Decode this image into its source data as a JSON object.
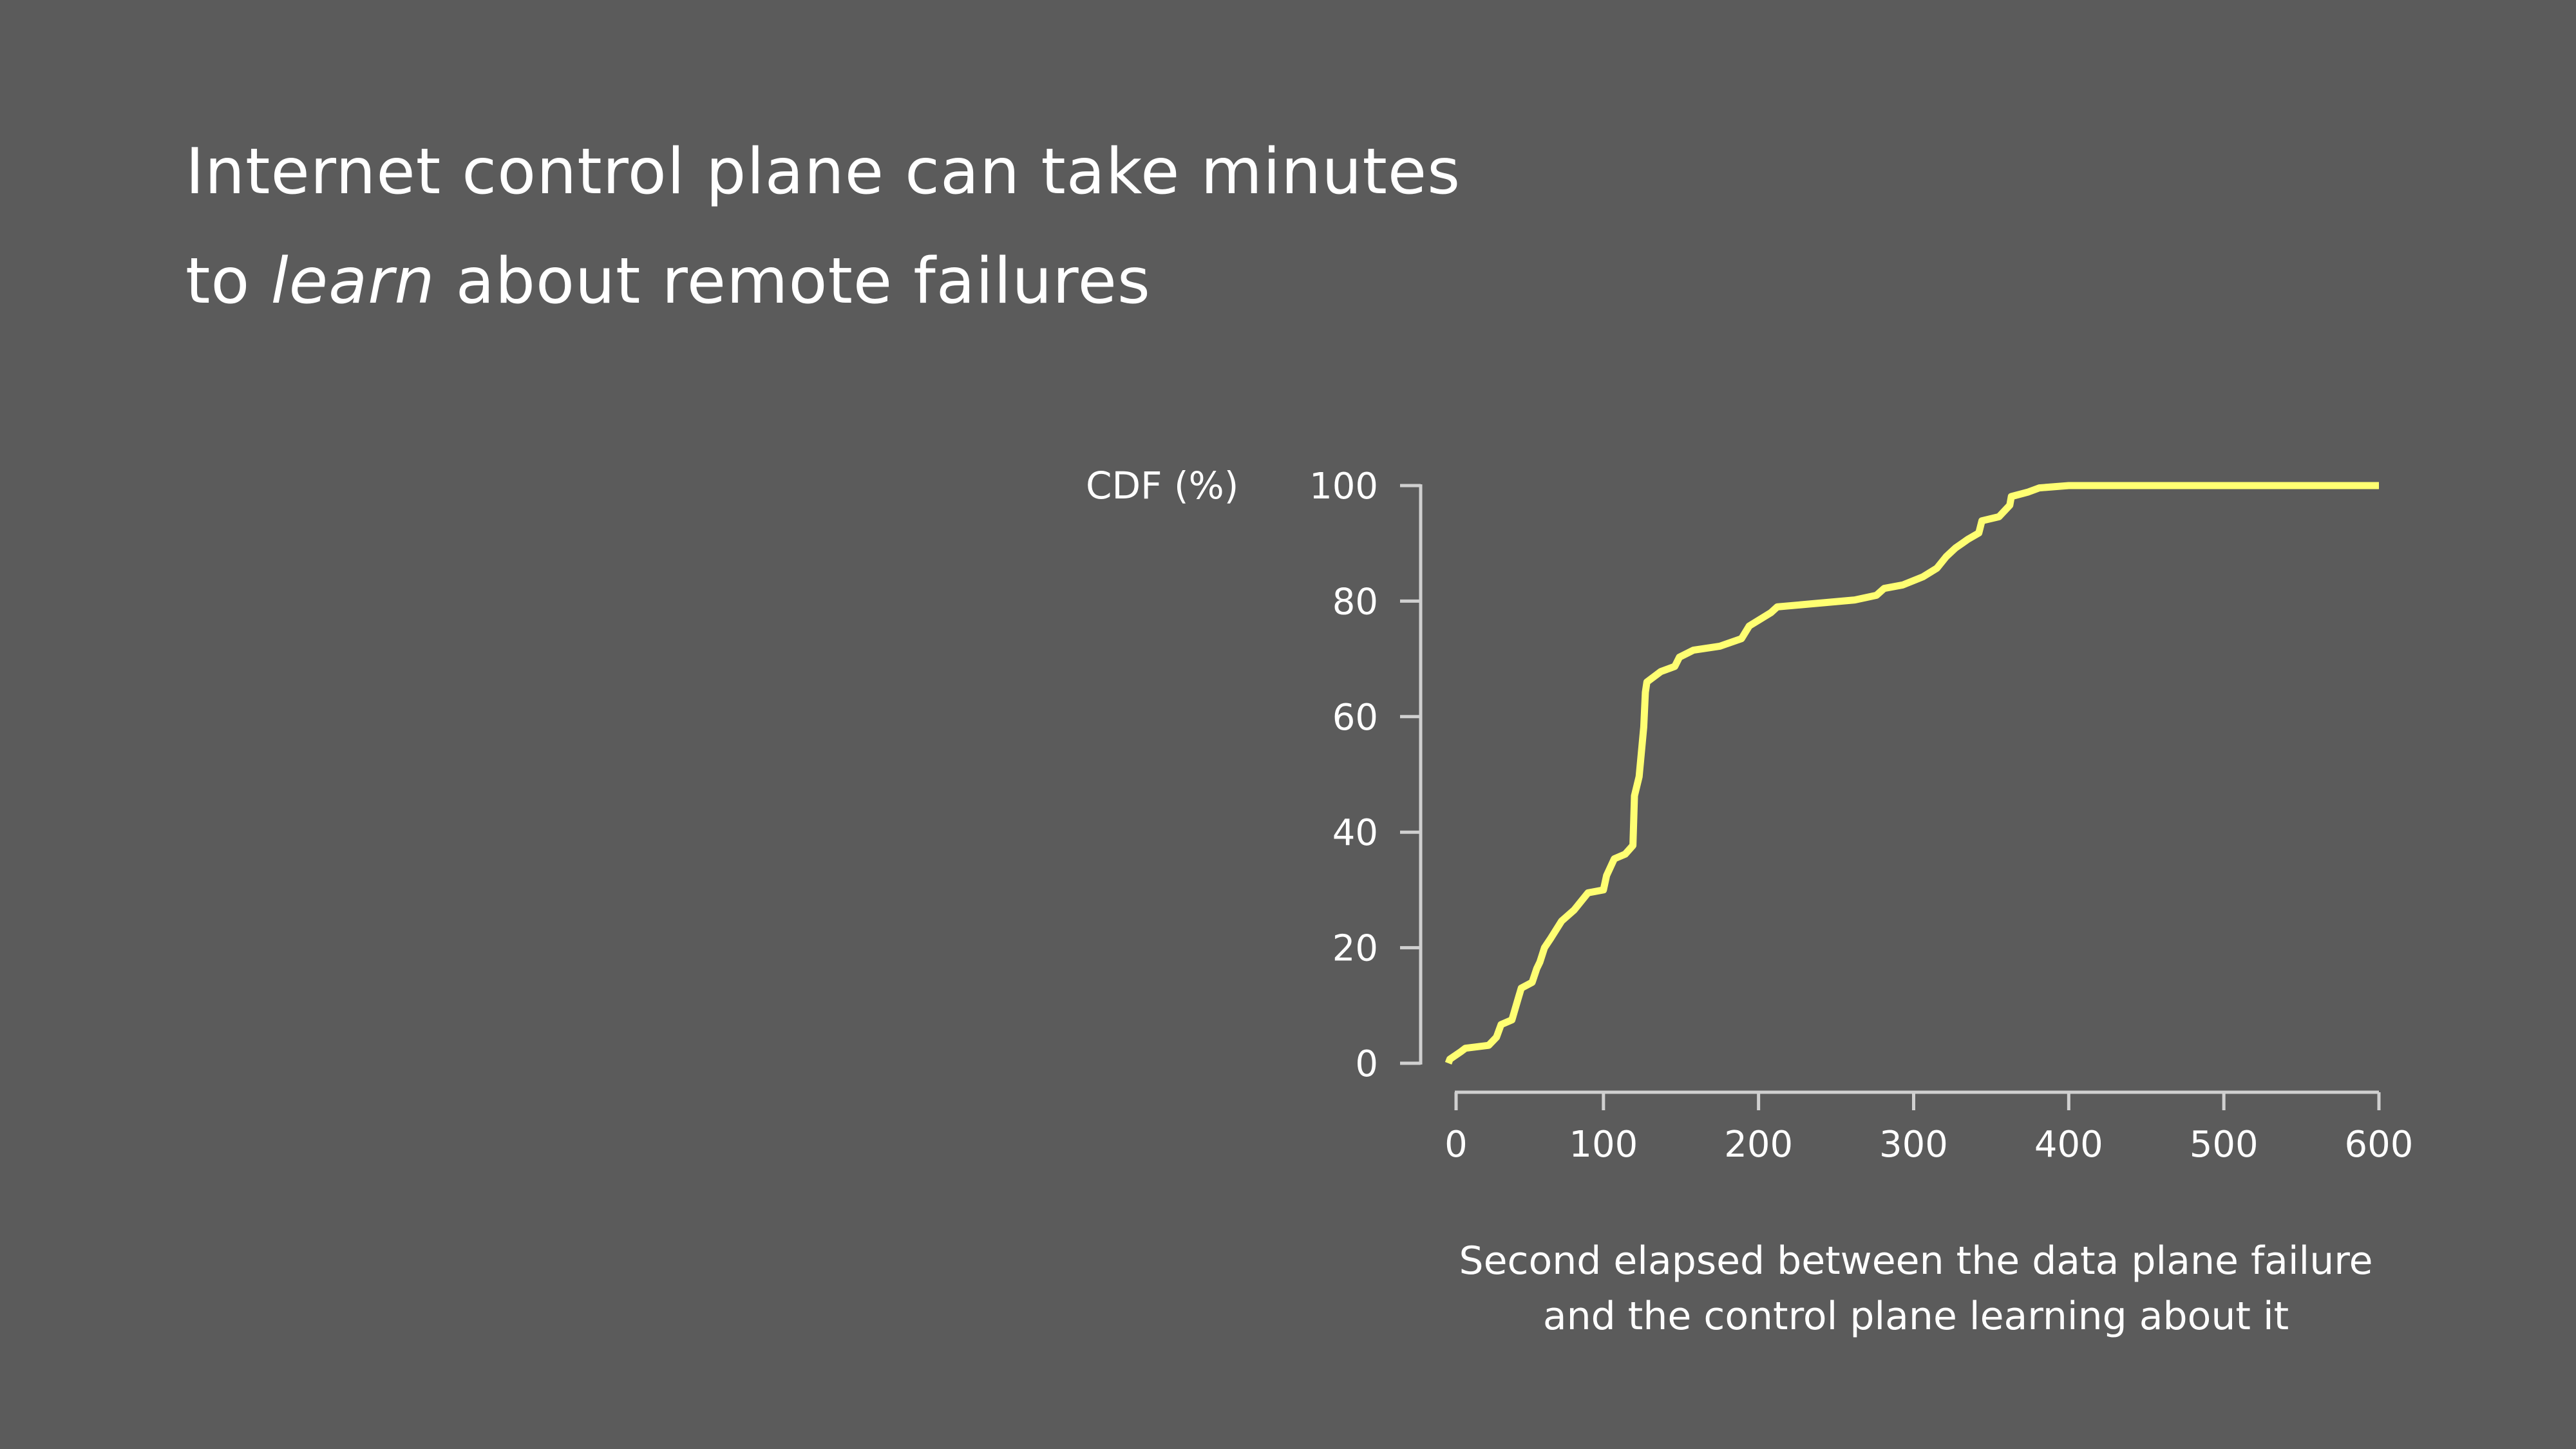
{
  "title": {
    "line1": "Internet control plane can take minutes",
    "line2_prefix": "to ",
    "line2_emph": "learn",
    "line2_suffix": " about remote failures"
  },
  "colors": {
    "background": "#5b5b5b",
    "curve": "#ffff72",
    "axis": "#d0d0d0",
    "text": "#ffffff"
  },
  "chart_data": {
    "type": "line",
    "title": "",
    "ylabel": "CDF (%)",
    "xlabel_line1": "Second elapsed between the data plane failure",
    "xlabel_line2": "and the control plane learning about it",
    "xlim": [
      0,
      600
    ],
    "ylim": [
      0,
      100
    ],
    "xticks": [
      "0",
      "100",
      "200",
      "300",
      "400",
      "500",
      "600"
    ],
    "yticks": [
      "0",
      "20",
      "40",
      "60",
      "80",
      "100"
    ],
    "grid": false,
    "series": [
      {
        "name": "CDF",
        "x": [
          0,
          1,
          8,
          11,
          26,
          31,
          34,
          41,
          45,
          47,
          54,
          57,
          59,
          62,
          66,
          73,
          81,
          90,
          100,
          102,
          107,
          114,
          119,
          120,
          123,
          126,
          127,
          128,
          137,
          146,
          149,
          158,
          175,
          189,
          194,
          208,
          212,
          262,
          276,
          281,
          293,
          306,
          315,
          321,
          327,
          335,
          342,
          344,
          355,
          362,
          363,
          374,
          381,
          400,
          600
        ],
        "y": [
          0,
          0.7,
          2,
          2.6,
          3.1,
          4.5,
          6.7,
          7.5,
          11.2,
          13,
          14,
          16.4,
          17.5,
          20,
          21.6,
          24.6,
          26.5,
          29.5,
          30,
          32.5,
          35.4,
          36.2,
          37.7,
          46.3,
          49.6,
          58.2,
          64.2,
          66,
          67.8,
          68.7,
          70.3,
          71.5,
          72.2,
          73.5,
          75.7,
          78,
          79,
          80.2,
          81,
          82.2,
          82.8,
          84.2,
          85.7,
          87.7,
          89.2,
          90.7,
          91.8,
          93.9,
          94.6,
          96.6,
          98.1,
          98.9,
          99.6,
          100,
          100
        ]
      }
    ]
  }
}
